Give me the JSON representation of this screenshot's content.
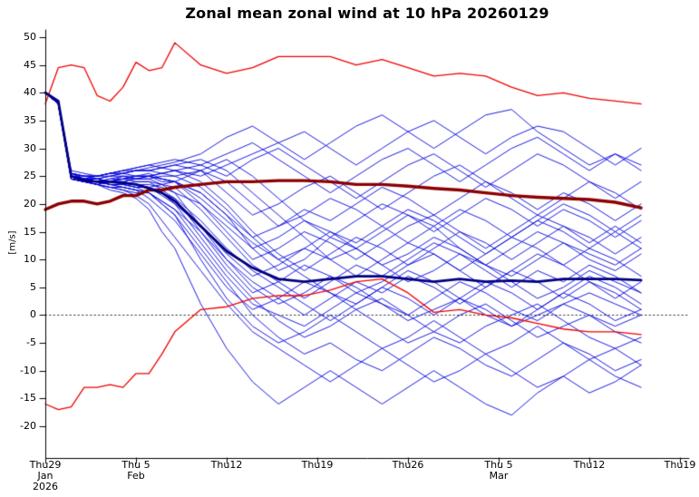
{
  "chart_data": {
    "type": "line",
    "title": "Zonal mean zonal wind at 10 hPa 20260129",
    "ylabel": "[m/s]",
    "xlabel": "",
    "ylim": [
      -20,
      50
    ],
    "grid": false,
    "zero_line": true,
    "y_ticks": [
      50,
      45,
      40,
      35,
      30,
      25,
      20,
      15,
      10,
      5,
      0,
      -5,
      -10,
      -15,
      -20
    ],
    "x_ticks": [
      {
        "day": 0,
        "lines": [
          "Thu29",
          "Jan",
          "2026"
        ]
      },
      {
        "day": 7,
        "lines": [
          "Thu 5",
          "Feb"
        ]
      },
      {
        "day": 14,
        "lines": [
          "Thu12"
        ]
      },
      {
        "day": 21,
        "lines": [
          "Thu19"
        ]
      },
      {
        "day": 28,
        "lines": [
          "Thu26"
        ]
      },
      {
        "day": 35,
        "lines": [
          "Thu 5",
          "Mar"
        ]
      },
      {
        "day": 42,
        "lines": [
          "Thu12"
        ]
      },
      {
        "day": 49,
        "lines": [
          "Thu19"
        ]
      }
    ],
    "x_range_days": [
      0,
      49
    ],
    "sample_days": [
      0,
      1,
      2,
      3,
      4,
      5,
      6,
      7,
      8,
      9,
      10,
      12,
      14,
      16,
      18,
      20,
      22,
      24,
      26,
      28,
      30,
      32,
      34,
      36,
      38,
      40,
      42,
      44,
      46
    ],
    "series": [
      {
        "name": "climatology-max",
        "color": "#ee0000",
        "width": 1.3,
        "values": [
          38,
          44.5,
          45,
          44.5,
          39.5,
          38.5,
          41,
          45.5,
          44,
          44.5,
          49,
          45,
          43.5,
          44.5,
          46.5,
          46.5,
          46.5,
          45,
          46,
          44.5,
          43,
          43.5,
          43,
          41,
          39.5,
          40,
          39,
          38.5,
          38
        ]
      },
      {
        "name": "climatology-min",
        "color": "#ee0000",
        "width": 1.3,
        "values": [
          -16,
          -17,
          -16.5,
          -13,
          -13,
          -12.5,
          -13,
          -10.5,
          -10.5,
          -7,
          -3,
          1,
          1.5,
          3,
          3.5,
          3.5,
          4.5,
          6,
          6.5,
          4,
          0.5,
          1,
          0,
          -0.5,
          -1.5,
          -2.5,
          -3,
          -3,
          -3.5
        ]
      },
      {
        "name": "climatology-mean",
        "color": "#8b0000",
        "width": 3.4,
        "values": [
          19,
          20,
          20.5,
          20.5,
          20,
          20.5,
          21.5,
          21.5,
          22.5,
          22.5,
          23,
          23.5,
          24,
          24,
          24.2,
          24.2,
          24,
          23.5,
          23.5,
          23.2,
          22.8,
          22.5,
          22,
          21.5,
          21.2,
          21,
          20.8,
          20.3,
          19.3
        ]
      },
      {
        "name": "ensemble-mean",
        "color": "#000080",
        "width": 2.8,
        "values": [
          40,
          38.5,
          25,
          24.2,
          24,
          24,
          23.8,
          23.5,
          22.8,
          22,
          20.5,
          16,
          11.5,
          8.5,
          6.5,
          6,
          6.5,
          7,
          7,
          6.5,
          6,
          6.5,
          6,
          6.2,
          6,
          6.5,
          6.5,
          6.5,
          6.3
        ]
      }
    ],
    "ensemble": {
      "name": "ensemble-members",
      "color": "#0000dd",
      "width": 0.9,
      "members": [
        [
          40,
          38.5,
          25.5,
          24.5,
          24,
          24.5,
          25,
          24.5,
          25,
          24,
          24,
          22,
          18,
          12,
          8,
          10,
          14,
          12,
          9,
          11,
          14,
          12,
          9,
          7,
          10,
          13,
          11,
          9,
          12
        ],
        [
          40,
          38,
          25,
          24.5,
          24,
          23.5,
          23.5,
          24,
          24,
          23.5,
          22,
          16,
          10,
          5,
          2,
          4,
          7,
          5,
          2,
          0,
          3,
          6,
          4,
          1,
          -1,
          2,
          4,
          2,
          0
        ],
        [
          40,
          38.5,
          25,
          24.5,
          24.5,
          24,
          24,
          23.5,
          23,
          22,
          20,
          14,
          8,
          3,
          -1,
          -4,
          -2,
          1,
          3,
          0,
          -3,
          -5,
          -2,
          0,
          2,
          -1,
          -4,
          -6,
          -4
        ],
        [
          40,
          38,
          24.5,
          24,
          23.5,
          24,
          24,
          24.5,
          24.5,
          25,
          25,
          26,
          24,
          20,
          16,
          18,
          21,
          19,
          16,
          13,
          16,
          19,
          17,
          14,
          17,
          20,
          18,
          15,
          18
        ],
        [
          40,
          38.5,
          26,
          25.5,
          25,
          25,
          25.5,
          26,
          26,
          26.5,
          27,
          28,
          26,
          22,
          18,
          14,
          10,
          12,
          15,
          18,
          16,
          12,
          9,
          12,
          15,
          13,
          10,
          8,
          11
        ],
        [
          40,
          38,
          24.5,
          24,
          24,
          23.5,
          23,
          22.5,
          22,
          20,
          18,
          12,
          6,
          0,
          -4,
          -7,
          -5,
          -8,
          -10,
          -7,
          -4,
          -6,
          -9,
          -11,
          -8,
          -5,
          -7,
          -10,
          -8
        ],
        [
          40,
          38.5,
          25,
          24.5,
          24,
          24,
          24,
          23.5,
          23.5,
          23,
          22,
          20,
          16,
          12,
          14,
          17,
          15,
          12,
          9,
          6,
          8,
          11,
          9,
          6,
          3,
          5,
          8,
          6,
          4
        ],
        [
          40,
          38,
          25,
          24.5,
          24.5,
          24,
          25,
          25,
          25,
          24.5,
          24,
          21,
          17,
          13,
          10,
          7,
          4,
          2,
          5,
          8,
          6,
          3,
          0,
          -2,
          1,
          4,
          2,
          -1,
          1
        ],
        [
          40,
          38.5,
          25.5,
          25,
          25,
          25.5,
          26,
          26.5,
          27,
          27.5,
          28,
          27,
          25,
          28,
          30,
          27,
          24,
          21,
          24,
          27,
          29,
          26,
          23,
          26,
          29,
          27,
          24,
          21,
          24
        ],
        [
          40,
          38,
          24.5,
          24,
          23.5,
          23,
          23,
          22.5,
          21,
          19,
          17,
          11,
          5,
          1,
          3,
          6,
          4,
          1,
          -2,
          -5,
          -3,
          0,
          2,
          -1,
          -4,
          -2,
          0,
          -3,
          -5
        ],
        [
          40,
          38.5,
          25,
          25,
          24.5,
          25,
          25.5,
          26,
          26,
          26.5,
          27,
          26,
          22,
          18,
          20,
          23,
          25,
          22,
          19,
          22,
          25,
          27,
          24,
          21,
          18,
          21,
          24,
          22,
          19
        ],
        [
          40,
          38,
          25,
          24.5,
          24,
          23.5,
          23,
          22.5,
          22,
          20.5,
          19,
          13,
          7,
          2,
          0,
          -2,
          1,
          4,
          2,
          -1,
          1,
          3,
          1,
          -2,
          0,
          2,
          0,
          -2,
          0
        ],
        [
          40,
          38.5,
          25.5,
          24.5,
          24,
          24,
          24.5,
          25,
          25,
          25.5,
          26,
          24,
          20,
          15,
          11,
          8,
          11,
          14,
          12,
          9,
          12,
          15,
          13,
          10,
          13,
          16,
          14,
          11,
          14
        ],
        [
          40,
          38,
          24.5,
          24,
          24,
          24.5,
          24.5,
          24,
          24,
          22.5,
          21,
          15,
          9,
          4,
          6,
          9,
          7,
          4,
          6,
          9,
          11,
          8,
          5,
          8,
          11,
          9,
          6,
          3,
          6
        ],
        [
          40,
          38.5,
          25,
          24.5,
          24.5,
          24,
          23.5,
          23,
          23,
          23.5,
          24,
          26,
          28,
          25,
          21,
          17,
          14,
          17,
          20,
          18,
          15,
          18,
          21,
          19,
          16,
          19,
          17,
          14,
          17
        ],
        [
          40,
          38,
          24.5,
          24,
          23.5,
          23,
          22.5,
          21.5,
          20,
          17,
          14,
          8,
          2,
          -3,
          -6,
          -9,
          -12,
          -9,
          -6,
          -9,
          -12,
          -10,
          -7,
          -10,
          -13,
          -11,
          -8,
          -11,
          -13
        ],
        [
          40,
          38.5,
          25.5,
          25,
          25,
          25.5,
          25.5,
          26,
          26,
          25.5,
          25,
          23,
          19,
          14,
          10,
          12,
          15,
          13,
          16,
          19,
          17,
          14,
          11,
          14,
          17,
          15,
          12,
          15,
          12
        ],
        [
          40,
          38,
          24.5,
          24,
          23.5,
          24,
          24.5,
          25,
          25,
          25.5,
          26,
          27,
          29,
          31,
          28,
          25,
          22,
          25,
          28,
          30,
          27,
          24,
          27,
          30,
          32,
          29,
          26,
          29,
          26
        ],
        [
          40,
          38.5,
          25,
          24.5,
          24,
          23.5,
          23.5,
          23,
          23,
          22,
          21,
          17,
          12,
          8,
          5,
          2,
          -1,
          2,
          5,
          3,
          0,
          3,
          6,
          4,
          1,
          4,
          7,
          5,
          2
        ],
        [
          40,
          38,
          25,
          24.5,
          24.5,
          24,
          24,
          23.5,
          23,
          21.5,
          20,
          16,
          11,
          7,
          9,
          12,
          10,
          7,
          10,
          13,
          11,
          8,
          11,
          14,
          12,
          9,
          12,
          10,
          7
        ],
        [
          40,
          38.5,
          25.5,
          25,
          25,
          25.5,
          25.5,
          25,
          25.5,
          24.5,
          24,
          22,
          18,
          14,
          16,
          19,
          17,
          20,
          23,
          21,
          18,
          21,
          24,
          22,
          19,
          22,
          20,
          17,
          20
        ],
        [
          40,
          38,
          24.5,
          24,
          24,
          23.5,
          23.5,
          23,
          22,
          20,
          18,
          10,
          3,
          -2,
          -5,
          -3,
          0,
          -3,
          -6,
          -4,
          -1,
          -4,
          -7,
          -5,
          -2,
          -5,
          -8,
          -6,
          -9
        ],
        [
          40,
          38.5,
          25,
          24.5,
          24,
          24,
          24.5,
          24.5,
          24.5,
          23.5,
          23,
          19,
          14,
          9,
          6,
          3,
          6,
          9,
          7,
          10,
          13,
          11,
          8,
          5,
          8,
          6,
          9,
          7,
          4
        ],
        [
          40,
          38,
          25,
          24.5,
          25,
          25.5,
          26,
          26.5,
          27,
          26.5,
          26,
          25,
          27,
          29,
          31,
          33,
          30,
          27,
          30,
          33,
          35,
          32,
          29,
          32,
          34,
          33,
          30,
          27,
          30
        ],
        [
          40,
          38.5,
          24.5,
          24,
          23.5,
          23,
          22.5,
          22,
          22,
          20.5,
          19,
          15,
          10,
          6,
          3,
          0,
          3,
          6,
          4,
          7,
          5,
          2,
          5,
          8,
          6,
          3,
          6,
          4,
          1
        ],
        [
          40,
          38,
          25,
          24.5,
          24.5,
          25,
          25,
          24.5,
          25,
          24.5,
          24,
          20,
          15,
          10,
          12,
          15,
          13,
          10,
          13,
          16,
          18,
          15,
          12,
          15,
          18,
          16,
          13,
          16,
          13
        ],
        [
          40,
          38.5,
          24.5,
          24,
          23.5,
          22.5,
          22,
          21,
          19,
          15,
          12,
          2,
          -6,
          -12,
          -16,
          -13,
          -10,
          -13,
          -16,
          -13,
          -10,
          -13,
          -16,
          -18,
          -14,
          -11,
          -14,
          -12,
          -9
        ],
        [
          40,
          38,
          25.5,
          25,
          25,
          25.5,
          26,
          26,
          26.5,
          27,
          27.5,
          29,
          32,
          34,
          31,
          28,
          31,
          34,
          36,
          33,
          30,
          33,
          36,
          37,
          33,
          30,
          27,
          29,
          27
        ]
      ]
    },
    "colors": {
      "climatology_envelope": "#ee0000",
      "climatology_mean": "#8b0000",
      "ensemble_member": "#0000dd",
      "ensemble_mean": "#000080",
      "axis": "#000000",
      "background": "#ffffff"
    }
  }
}
